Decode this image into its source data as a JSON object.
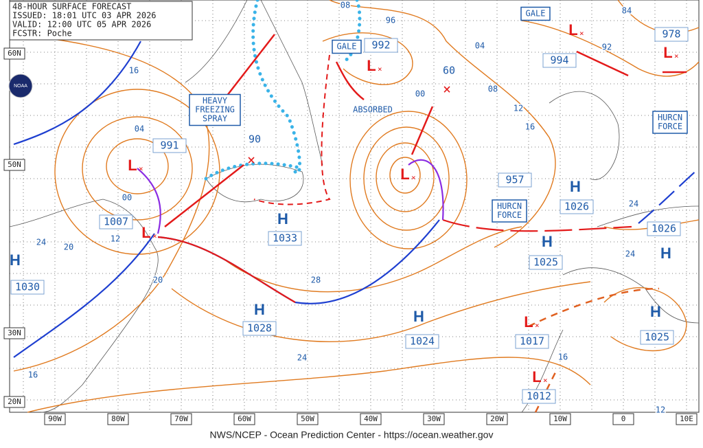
{
  "header": {
    "lines": [
      "48-HOUR SURFACE FORECAST",
      "ISSUED: 18:01 UTC 03 APR 2026",
      "VALID:  12:00 UTC 05 APR 2026",
      "FCSTR:  Poche"
    ]
  },
  "latitudes": [
    "60N",
    "50N",
    "30N",
    "20N"
  ],
  "longitudes": [
    "90W",
    "80W",
    "70W",
    "60W",
    "50W",
    "40W",
    "30W",
    "20W",
    "10W",
    "0",
    "10E"
  ],
  "centers": [
    {
      "symbol": "L",
      "value": "991"
    },
    {
      "symbol": "L",
      "value": "1007"
    },
    {
      "symbol": "H",
      "value": "1033"
    },
    {
      "symbol": "H",
      "value": "1028"
    },
    {
      "symbol": "H",
      "value": "1024"
    },
    {
      "symbol": "L",
      "value": "992"
    },
    {
      "symbol": "L",
      "value": "957"
    },
    {
      "symbol": "L",
      "value": "994"
    },
    {
      "symbol": "L",
      "value": "978"
    },
    {
      "symbol": "H",
      "value": "1026"
    },
    {
      "symbol": "H",
      "value": "1025"
    },
    {
      "symbol": "H",
      "value": "1026"
    },
    {
      "symbol": "H",
      "value": "1030"
    },
    {
      "symbol": "L",
      "value": "1017"
    },
    {
      "symbol": "H",
      "value": "1025"
    },
    {
      "symbol": "L",
      "value": "1012"
    }
  ],
  "isobar_labels": [
    "16",
    "04",
    "00",
    "12",
    "24",
    "20",
    "20",
    "28",
    "24",
    "16",
    "08",
    "96",
    "04",
    "00",
    "08",
    "12",
    "16",
    "92",
    "84",
    "24",
    "24",
    "16",
    "12",
    "60",
    "90"
  ],
  "boxes": [
    {
      "lines": [
        "GALE"
      ]
    },
    {
      "lines": [
        "GALE"
      ]
    },
    {
      "lines": [
        "HURCN",
        "FORCE"
      ]
    },
    {
      "lines": [
        "HURCN",
        "FORCE"
      ]
    },
    {
      "lines": [
        "HEAVY",
        "FREEZING",
        "SPRAY"
      ]
    }
  ],
  "annotations": [
    "ABSORBED"
  ],
  "logo": "NOAA",
  "footer": "NWS/NCEP - Ocean Prediction Center - https://ocean.weather.gov"
}
